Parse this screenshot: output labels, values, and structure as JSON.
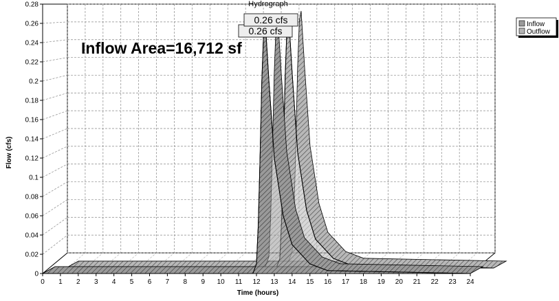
{
  "chart_data": {
    "type": "area",
    "title": "Hydrograph",
    "xlabel": "Time  (hours)",
    "ylabel": "Flow  (cfs)",
    "xlim": [
      0,
      24
    ],
    "ylim": [
      0,
      0.28
    ],
    "x_ticks": [
      0,
      1,
      2,
      3,
      4,
      5,
      6,
      7,
      8,
      9,
      10,
      11,
      12,
      13,
      14,
      15,
      16,
      17,
      18,
      19,
      20,
      21,
      22,
      23,
      24
    ],
    "y_ticks": [
      0,
      0.02,
      0.04,
      0.06,
      0.08,
      0.1,
      0.12,
      0.14,
      0.16,
      0.18,
      0.2,
      0.22,
      0.24,
      0.26,
      0.28
    ],
    "y_tick_labels": [
      "0",
      "0.02",
      "0.04",
      "0.06",
      "0.08",
      "0.1",
      "0.12",
      "0.14",
      "0.16",
      "0.18",
      "0.2",
      "0.22",
      "0.24",
      "0.26",
      "0.28"
    ],
    "grid": true,
    "legend_position": "top-right",
    "annotation": "Inflow Area=16,712 sf",
    "series": [
      {
        "name": "Inflow",
        "color": "#9a9a9a",
        "peak_label": "0.26 cfs",
        "x": [
          0,
          11.8,
          12.0,
          12.1,
          12.2,
          12.3,
          12.4,
          12.5,
          12.7,
          13.0,
          13.5,
          14.0,
          15.0,
          16.0,
          24
        ],
        "y": [
          0,
          0,
          0.01,
          0.05,
          0.12,
          0.2,
          0.25,
          0.26,
          0.2,
          0.12,
          0.06,
          0.03,
          0.01,
          0.003,
          0
        ]
      },
      {
        "name": "Outflow",
        "color": "#b4b4b4",
        "peak_label": "0.26 cfs",
        "x": [
          0,
          11.8,
          12.0,
          12.1,
          12.2,
          12.3,
          12.4,
          12.5,
          12.7,
          13.0,
          13.5,
          14.0,
          15.0,
          16.0,
          24
        ],
        "y": [
          0,
          0,
          0.01,
          0.05,
          0.12,
          0.2,
          0.25,
          0.26,
          0.2,
          0.12,
          0.06,
          0.03,
          0.01,
          0.003,
          0
        ]
      }
    ]
  }
}
